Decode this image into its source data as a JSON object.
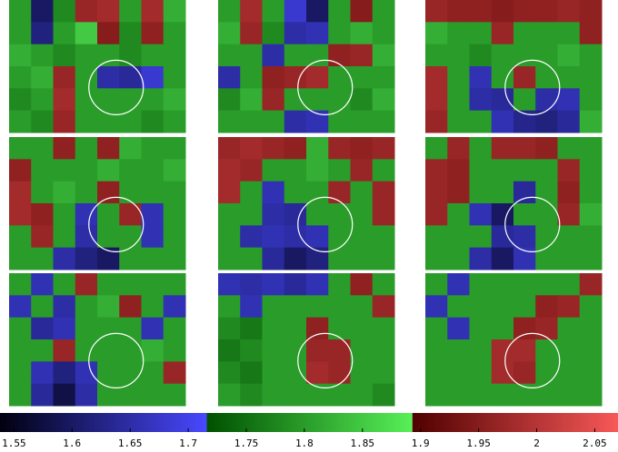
{
  "chart_data": {
    "type": "heatmap",
    "clim": [
      1.538,
      2.07
    ],
    "colormap": [
      {
        "range": [
          1.538,
          1.716
        ],
        "colors": [
          "#000010",
          "#4848ff"
        ]
      },
      {
        "range": [
          1.716,
          1.893
        ],
        "colors": [
          "#005000",
          "#58f058"
        ]
      },
      {
        "range": [
          1.893,
          2.07
        ],
        "colors": [
          "#500000",
          "#f85858"
        ]
      }
    ],
    "cticks": [
      1.55,
      1.6,
      1.65,
      1.7,
      1.75,
      1.8,
      1.85,
      1.9,
      1.95,
      2,
      2.05
    ],
    "panels": [
      {
        "values": [
          [
            1.8,
            1.6,
            1.78,
            1.97,
            1.98,
            1.8,
            1.98,
            1.82
          ],
          [
            1.8,
            1.62,
            1.8,
            1.85,
            1.95,
            1.78,
            1.96,
            1.8
          ],
          [
            1.82,
            1.8,
            1.78,
            1.8,
            1.8,
            1.78,
            1.8,
            1.8
          ],
          [
            1.8,
            1.82,
            1.97,
            1.8,
            1.65,
            1.64,
            1.68,
            1.8
          ],
          [
            1.78,
            1.8,
            1.98,
            1.8,
            1.8,
            1.8,
            1.8,
            1.82
          ],
          [
            1.8,
            1.78,
            1.97,
            1.8,
            1.8,
            1.8,
            1.78,
            1.8
          ]
        ]
      },
      {
        "values": [
          [
            1.8,
            1.98,
            1.8,
            1.68,
            1.6,
            1.8,
            1.95,
            1.8
          ],
          [
            1.82,
            1.97,
            1.78,
            1.65,
            1.66,
            1.8,
            1.82,
            1.8
          ],
          [
            1.8,
            1.8,
            1.65,
            1.8,
            1.8,
            1.96,
            1.97,
            1.82
          ],
          [
            1.65,
            1.8,
            1.96,
            1.97,
            1.98,
            1.8,
            1.8,
            1.8
          ],
          [
            1.78,
            1.82,
            1.97,
            1.8,
            1.8,
            1.8,
            1.78,
            1.82
          ],
          [
            1.8,
            1.8,
            1.8,
            1.65,
            1.66,
            1.8,
            1.8,
            1.8
          ]
        ]
      },
      {
        "values": [
          [
            1.97,
            1.96,
            1.96,
            1.95,
            1.96,
            1.96,
            1.97,
            1.96
          ],
          [
            1.82,
            1.8,
            1.8,
            1.97,
            1.8,
            1.8,
            1.8,
            1.96
          ],
          [
            1.8,
            1.8,
            1.78,
            1.8,
            1.8,
            1.8,
            1.82,
            1.8
          ],
          [
            1.98,
            1.8,
            1.66,
            1.8,
            1.97,
            1.8,
            1.8,
            1.8
          ],
          [
            1.98,
            1.8,
            1.65,
            1.64,
            1.8,
            1.65,
            1.66,
            1.8
          ],
          [
            1.97,
            1.8,
            1.8,
            1.66,
            1.63,
            1.62,
            1.64,
            1.82
          ]
        ]
      },
      {
        "values": [
          [
            1.8,
            1.8,
            1.96,
            1.8,
            1.96,
            1.82,
            1.8,
            1.8
          ],
          [
            1.96,
            1.8,
            1.8,
            1.8,
            1.82,
            1.8,
            1.8,
            1.82
          ],
          [
            1.98,
            1.8,
            1.82,
            1.8,
            1.96,
            1.8,
            1.8,
            1.8
          ],
          [
            1.98,
            1.96,
            1.8,
            1.66,
            1.8,
            1.97,
            1.66,
            1.8
          ],
          [
            1.8,
            1.97,
            1.8,
            1.65,
            1.8,
            1.8,
            1.66,
            1.8
          ],
          [
            1.8,
            1.8,
            1.65,
            1.62,
            1.6,
            1.8,
            1.8,
            1.8
          ]
        ]
      },
      {
        "values": [
          [
            1.97,
            1.98,
            1.97,
            1.96,
            1.82,
            1.97,
            1.96,
            1.97
          ],
          [
            1.98,
            1.97,
            1.8,
            1.8,
            1.82,
            1.8,
            1.97,
            1.8
          ],
          [
            1.98,
            1.8,
            1.66,
            1.8,
            1.8,
            1.97,
            1.8,
            1.97
          ],
          [
            1.8,
            1.8,
            1.65,
            1.64,
            1.8,
            1.8,
            1.8,
            1.97
          ],
          [
            1.8,
            1.65,
            1.66,
            1.65,
            1.66,
            1.8,
            1.8,
            1.8
          ],
          [
            1.8,
            1.8,
            1.64,
            1.6,
            1.62,
            1.8,
            1.8,
            1.8
          ]
        ]
      },
      {
        "values": [
          [
            1.8,
            1.97,
            1.8,
            1.97,
            1.97,
            1.96,
            1.8,
            1.8
          ],
          [
            1.97,
            1.96,
            1.8,
            1.8,
            1.8,
            1.8,
            1.97,
            1.8
          ],
          [
            1.97,
            1.96,
            1.8,
            1.8,
            1.64,
            1.8,
            1.96,
            1.8
          ],
          [
            1.97,
            1.8,
            1.66,
            1.6,
            1.8,
            1.8,
            1.97,
            1.82
          ],
          [
            1.8,
            1.8,
            1.8,
            1.64,
            1.65,
            1.8,
            1.8,
            1.8
          ],
          [
            1.8,
            1.8,
            1.65,
            1.6,
            1.66,
            1.8,
            1.8,
            1.8
          ]
        ]
      },
      {
        "values": [
          [
            1.8,
            1.66,
            1.8,
            1.97,
            1.8,
            1.8,
            1.8,
            1.8
          ],
          [
            1.66,
            1.8,
            1.65,
            1.8,
            1.82,
            1.96,
            1.8,
            1.66
          ],
          [
            1.8,
            1.64,
            1.66,
            1.8,
            1.8,
            1.8,
            1.66,
            1.8
          ],
          [
            1.8,
            1.8,
            1.97,
            1.8,
            1.8,
            1.8,
            1.82,
            1.8
          ],
          [
            1.8,
            1.66,
            1.62,
            1.66,
            1.8,
            1.8,
            1.8,
            1.97
          ],
          [
            1.8,
            1.64,
            1.58,
            1.65,
            1.8,
            1.8,
            1.8,
            1.8
          ]
        ]
      },
      {
        "values": [
          [
            1.66,
            1.65,
            1.66,
            1.64,
            1.66,
            1.8,
            1.96,
            1.8
          ],
          [
            1.8,
            1.66,
            1.8,
            1.8,
            1.8,
            1.8,
            1.8,
            1.97
          ],
          [
            1.78,
            1.76,
            1.8,
            1.8,
            1.96,
            1.8,
            1.8,
            1.8
          ],
          [
            1.76,
            1.78,
            1.8,
            1.8,
            1.97,
            1.97,
            1.8,
            1.8
          ],
          [
            1.78,
            1.76,
            1.8,
            1.8,
            1.98,
            1.97,
            1.8,
            1.8
          ],
          [
            1.8,
            1.78,
            1.8,
            1.8,
            1.8,
            1.8,
            1.8,
            1.78
          ]
        ]
      },
      {
        "values": [
          [
            1.8,
            1.66,
            1.8,
            1.8,
            1.8,
            1.8,
            1.8,
            1.97
          ],
          [
            1.66,
            1.8,
            1.8,
            1.8,
            1.8,
            1.96,
            1.97,
            1.8
          ],
          [
            1.8,
            1.66,
            1.8,
            1.8,
            1.96,
            1.97,
            1.8,
            1.8
          ],
          [
            1.8,
            1.8,
            1.8,
            1.98,
            1.98,
            1.8,
            1.8,
            1.8
          ],
          [
            1.8,
            1.8,
            1.8,
            1.98,
            1.97,
            1.8,
            1.8,
            1.8
          ],
          [
            1.8,
            1.8,
            1.8,
            1.8,
            1.8,
            1.8,
            1.8,
            1.8
          ]
        ]
      }
    ]
  }
}
